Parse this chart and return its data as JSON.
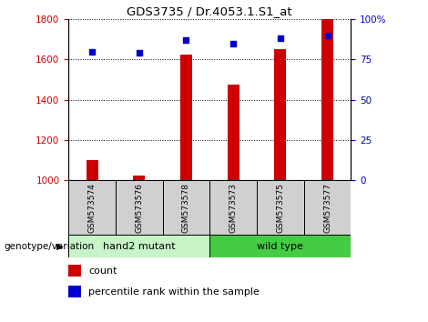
{
  "title": "GDS3735 / Dr.4053.1.S1_at",
  "samples": [
    "GSM573574",
    "GSM573576",
    "GSM573578",
    "GSM573573",
    "GSM573575",
    "GSM573577"
  ],
  "counts": [
    1100,
    1025,
    1625,
    1475,
    1650,
    1800
  ],
  "percentiles": [
    80,
    79,
    87,
    85,
    88,
    90
  ],
  "ylim_left": [
    1000,
    1800
  ],
  "ylim_right": [
    0,
    100
  ],
  "yticks_left": [
    1000,
    1200,
    1400,
    1600,
    1800
  ],
  "yticks_right": [
    0,
    25,
    50,
    75,
    100
  ],
  "groups": [
    {
      "label": "hand2 mutant",
      "start": 0,
      "end": 3,
      "color": "#c8f5c8"
    },
    {
      "label": "wild type",
      "start": 3,
      "end": 6,
      "color": "#44cc44"
    }
  ],
  "bar_color": "#CC0000",
  "dot_color": "#0000CC",
  "left_tick_color": "#CC0000",
  "right_tick_color": "#0000CC",
  "group_label": "genotype/variation",
  "legend_count": "count",
  "legend_percentile": "percentile rank within the sample",
  "grid_color": "black",
  "sample_bg_color": "#d0d0d0",
  "bar_width": 0.25
}
